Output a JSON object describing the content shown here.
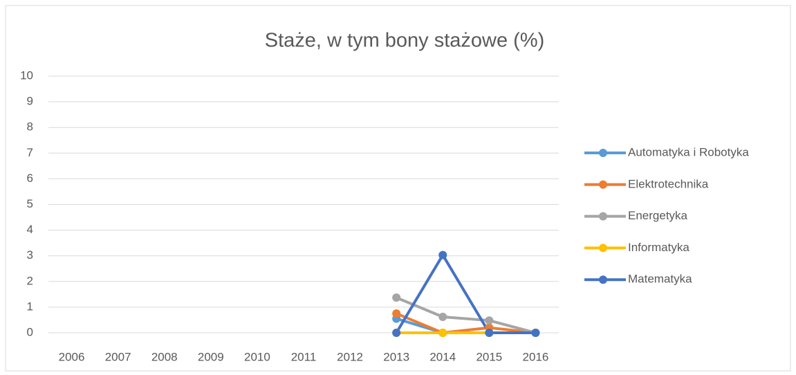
{
  "chart_data": {
    "type": "line",
    "title": "Staże, w tym bony stażowe (%)",
    "categories": [
      "2006",
      "2007",
      "2008",
      "2009",
      "2010",
      "2011",
      "2012",
      "2013",
      "2014",
      "2015",
      "2016"
    ],
    "series": [
      {
        "name": "Automatyka i Robotyka",
        "color": "#5b9bd5",
        "values": [
          null,
          null,
          null,
          null,
          null,
          null,
          null,
          0.55,
          0,
          0,
          0
        ]
      },
      {
        "name": "Elektrotechnika",
        "color": "#ed7d31",
        "values": [
          null,
          null,
          null,
          null,
          null,
          null,
          null,
          0.75,
          0,
          0.2,
          0
        ]
      },
      {
        "name": "Energetyka",
        "color": "#a5a5a5",
        "values": [
          null,
          null,
          null,
          null,
          null,
          null,
          null,
          1.37,
          0.62,
          0.48,
          0
        ]
      },
      {
        "name": "Informatyka",
        "color": "#ffc000",
        "values": [
          null,
          null,
          null,
          null,
          null,
          null,
          null,
          0,
          0,
          0,
          0
        ]
      },
      {
        "name": "Matematyka",
        "color": "#4472c4",
        "values": [
          null,
          null,
          null,
          null,
          null,
          null,
          null,
          0,
          3.03,
          0,
          0
        ]
      }
    ],
    "ylim": [
      0,
      10
    ],
    "yticks": [
      0,
      1,
      2,
      3,
      4,
      5,
      6,
      7,
      8,
      9,
      10
    ],
    "grid": true,
    "legend": "right"
  }
}
